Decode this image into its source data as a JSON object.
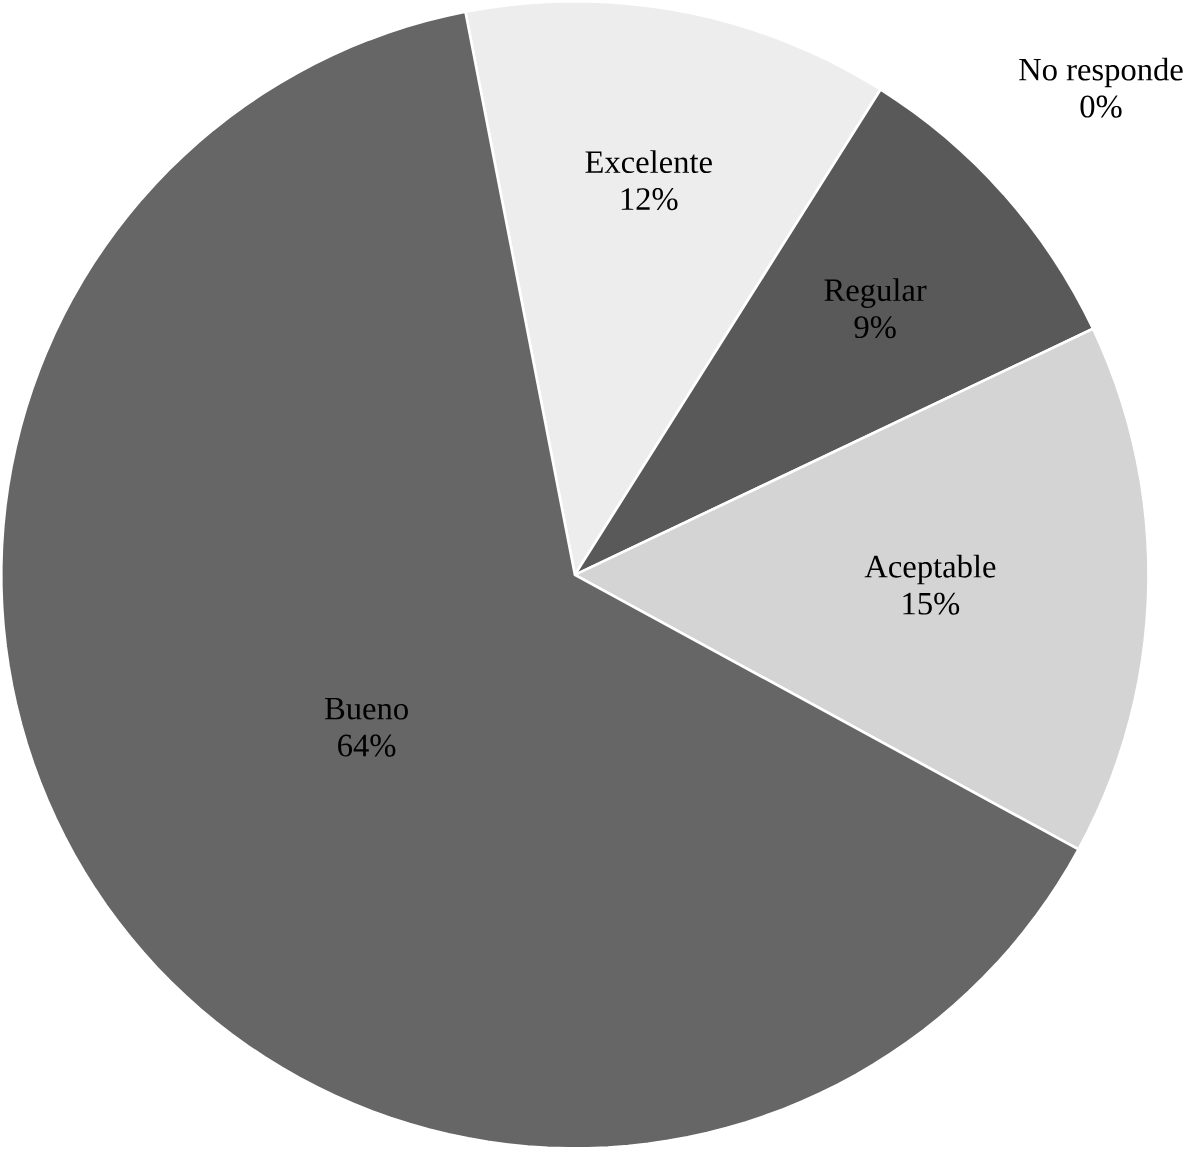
{
  "chart_data": {
    "type": "pie",
    "categories": [
      "Excelente",
      "No responde",
      "Regular",
      "Aceptable",
      "Bueno"
    ],
    "values": [
      12,
      0,
      9,
      15,
      64
    ],
    "value_labels": [
      "12%",
      "0%",
      "9%",
      "15%",
      "64%"
    ],
    "colors": [
      "#ededed",
      "#ededed",
      "#595959",
      "#d4d4d4",
      "#666666"
    ]
  }
}
